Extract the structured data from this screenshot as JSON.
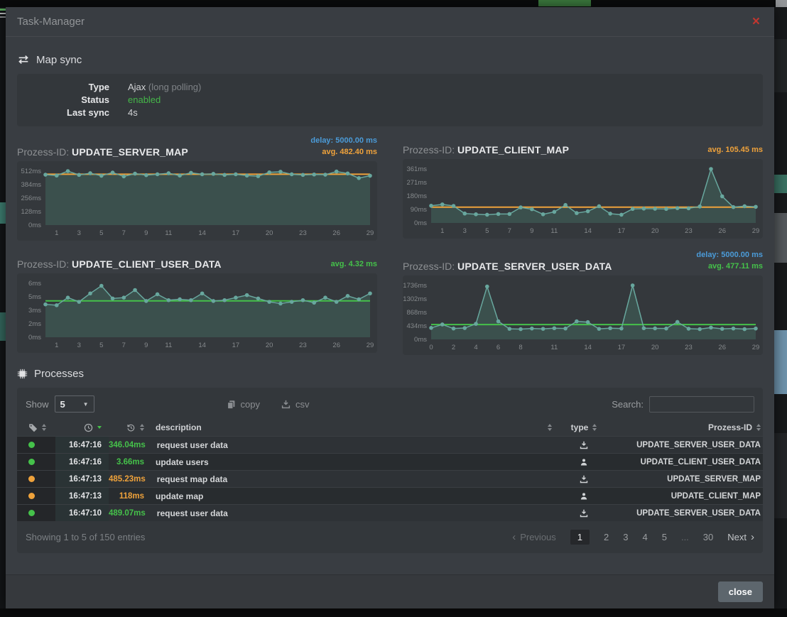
{
  "modal": {
    "title": "Task-Manager",
    "close_icon": "×",
    "close_label": "close"
  },
  "map_sync": {
    "heading": "Map sync",
    "type_label": "Type",
    "type_value": "Ajax",
    "type_note": "(long polling)",
    "status_label": "Status",
    "status_value": "enabled",
    "last_sync_label": "Last sync",
    "last_sync_value": "4s"
  },
  "charts_section": {
    "prefix": "Prozess-ID:"
  },
  "chart_data": [
    {
      "type": "area",
      "name": "UPDATE_SERVER_MAP",
      "delay_label": "delay: 5000.00 ms",
      "avg_label": "avg. 482.40 ms",
      "avg_value": 482.4,
      "avg_line_color": "orange",
      "y_max": 512,
      "y_tick_labels": [
        "512ms",
        "384ms",
        "256ms",
        "128ms",
        "0ms"
      ],
      "x_tick_labels": [
        1,
        3,
        5,
        7,
        9,
        11,
        14,
        17,
        20,
        23,
        26,
        29
      ],
      "values": [
        478,
        470,
        512,
        476,
        492,
        468,
        498,
        462,
        488,
        474,
        482,
        492,
        470,
        496,
        482,
        486,
        476,
        482,
        470,
        464,
        500,
        506,
        482,
        476,
        480,
        478,
        508,
        490,
        446,
        468
      ]
    },
    {
      "type": "area",
      "name": "UPDATE_CLIENT_MAP",
      "avg_label": "avg. 105.45 ms",
      "avg_value": 105.45,
      "avg_line_color": "orange",
      "y_max": 361,
      "y_tick_labels": [
        "361ms",
        "271ms",
        "180ms",
        "90ms",
        "0ms"
      ],
      "x_tick_labels": [
        1,
        3,
        5,
        7,
        9,
        11,
        14,
        17,
        20,
        23,
        26,
        29
      ],
      "values": [
        115,
        124,
        114,
        63,
        58,
        55,
        60,
        60,
        104,
        92,
        58,
        74,
        120,
        66,
        78,
        112,
        62,
        55,
        94,
        96,
        95,
        94,
        99,
        98,
        110,
        361,
        178,
        106,
        112,
        108
      ]
    },
    {
      "type": "area",
      "name": "UPDATE_CLIENT_USER_DATA",
      "avg_label": "avg. 4.32 ms",
      "avg_value": 4.32,
      "avg_line_color": "green",
      "y_max": 6.4,
      "y_tick_labels": [
        "6ms",
        "5ms",
        "3ms",
        "2ms",
        "0ms"
      ],
      "x_tick_labels": [
        1,
        3,
        5,
        7,
        9,
        11,
        14,
        17,
        20,
        23,
        26,
        29
      ],
      "values": [
        3.9,
        3.8,
        4.7,
        4.2,
        5.2,
        6.1,
        4.6,
        4.7,
        5.6,
        4.3,
        5.1,
        4.4,
        4.5,
        4.4,
        5.2,
        4.3,
        4.4,
        4.7,
        5.0,
        4.6,
        4.2,
        4.0,
        4.2,
        4.4,
        4.1,
        4.7,
        4.2,
        4.9,
        4.5,
        5.2
      ]
    },
    {
      "type": "area",
      "name": "UPDATE_SERVER_USER_DATA",
      "delay_label": "delay: 5000.00 ms",
      "avg_label": "avg. 477.11 ms",
      "avg_value": 477.11,
      "avg_line_color": "green",
      "y_max": 1736,
      "y_tick_labels": [
        "1736ms",
        "1302ms",
        "868ms",
        "434ms",
        "0ms"
      ],
      "x_tick_labels": [
        0,
        2,
        4,
        6,
        8,
        11,
        14,
        17,
        20,
        23,
        26,
        29
      ],
      "values": [
        370,
        480,
        350,
        365,
        500,
        1700,
        580,
        340,
        330,
        350,
        340,
        360,
        350,
        580,
        555,
        340,
        360,
        350,
        1736,
        360,
        355,
        350,
        560,
        345,
        330,
        380,
        340,
        350,
        330,
        350
      ]
    }
  ],
  "processes": {
    "heading": "Processes",
    "show_label": "Show",
    "show_value": "5",
    "copy_label": "copy",
    "csv_label": "csv",
    "search_label": "Search:",
    "header": {
      "description": "description",
      "type": "type",
      "prozess_id": "Prozess-ID"
    },
    "rows": [
      {
        "status": "green",
        "time": "16:47:16",
        "duration": "346.04ms",
        "duration_color": "green",
        "description": "request user data",
        "type_icon": "download",
        "prozess_id": "UPDATE_SERVER_USER_DATA"
      },
      {
        "status": "green",
        "time": "16:47:16",
        "duration": "3.66ms",
        "duration_color": "green",
        "description": "update users",
        "type_icon": "user",
        "prozess_id": "UPDATE_CLIENT_USER_DATA"
      },
      {
        "status": "orange",
        "time": "16:47:13",
        "duration": "485.23ms",
        "duration_color": "orange",
        "description": "request map data",
        "type_icon": "download",
        "prozess_id": "UPDATE_SERVER_MAP"
      },
      {
        "status": "orange",
        "time": "16:47:13",
        "duration": "118ms",
        "duration_color": "orange",
        "description": "update map",
        "type_icon": "user",
        "prozess_id": "UPDATE_CLIENT_MAP"
      },
      {
        "status": "green",
        "time": "16:47:10",
        "duration": "489.07ms",
        "duration_color": "green",
        "description": "request user data",
        "type_icon": "download",
        "prozess_id": "UPDATE_SERVER_USER_DATA"
      }
    ],
    "info": "Showing 1 to 5 of 150 entries",
    "pagination": {
      "previous": "Previous",
      "pages": [
        "1",
        "2",
        "3",
        "4",
        "5",
        "...",
        "30"
      ],
      "active_page": "1",
      "next": "Next"
    }
  },
  "colors": {
    "green": "#45c14a",
    "orange": "#efa23b",
    "blue": "#4b9bd8",
    "red_close": "#c2362f",
    "teal_line": "#68a79e",
    "teal_fill": "#3b504d"
  }
}
